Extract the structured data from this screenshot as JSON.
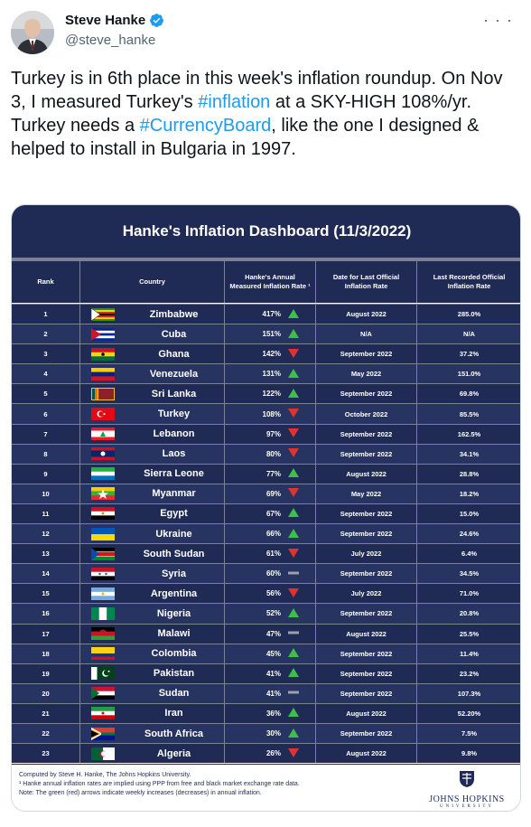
{
  "tweet": {
    "author_name": "Steve Hanke",
    "handle": "@steve_hanke",
    "more_icon": "more-horizontal-icon",
    "text_parts": [
      "Turkey is in 6th place in this week's inflation roundup. On Nov 3, I measured Turkey's ",
      "#inflation",
      " at a SKY-HIGH 108%/yr. Turkey needs a ",
      "#CurrencyBoard",
      ", like the one I designed & helped to install in Bulgaria in 1997."
    ]
  },
  "dashboard": {
    "title": "Hanke's Inflation Dashboard (11/3/2022)",
    "headers": {
      "rank": "Rank",
      "country": "Country",
      "rate": "Hanke's Annual Measured Inflation Rate ¹",
      "date": "Date for Last Official Inflation Rate",
      "last": "Last Recorded Official Inflation Rate"
    },
    "colors": {
      "up": "#3cc04a",
      "down": "#e0332f",
      "flat": "#9aa0ab",
      "navy": "#1f2b54"
    },
    "rows": [
      {
        "rank": "1",
        "country": "Zimbabwe",
        "rate": "417%",
        "trend": "up",
        "date": "August 2022",
        "last": "285.0%",
        "flag": "zimbabwe"
      },
      {
        "rank": "2",
        "country": "Cuba",
        "rate": "151%",
        "trend": "up",
        "date": "N/A",
        "last": "N/A",
        "flag": "cuba"
      },
      {
        "rank": "3",
        "country": "Ghana",
        "rate": "142%",
        "trend": "down",
        "date": "September 2022",
        "last": "37.2%",
        "flag": "ghana"
      },
      {
        "rank": "4",
        "country": "Venezuela",
        "rate": "131%",
        "trend": "up",
        "date": "May 2022",
        "last": "151.0%",
        "flag": "venezuela"
      },
      {
        "rank": "5",
        "country": "Sri Lanka",
        "rate": "122%",
        "trend": "up",
        "date": "September 2022",
        "last": "69.8%",
        "flag": "srilanka"
      },
      {
        "rank": "6",
        "country": "Turkey",
        "rate": "108%",
        "trend": "down",
        "date": "October 2022",
        "last": "85.5%",
        "flag": "turkey"
      },
      {
        "rank": "7",
        "country": "Lebanon",
        "rate": "97%",
        "trend": "down",
        "date": "September 2022",
        "last": "162.5%",
        "flag": "lebanon"
      },
      {
        "rank": "8",
        "country": "Laos",
        "rate": "80%",
        "trend": "down",
        "date": "September 2022",
        "last": "34.1%",
        "flag": "laos"
      },
      {
        "rank": "9",
        "country": "Sierra Leone",
        "rate": "77%",
        "trend": "up",
        "date": "August 2022",
        "last": "28.8%",
        "flag": "sierraleone"
      },
      {
        "rank": "10",
        "country": "Myanmar",
        "rate": "69%",
        "trend": "down",
        "date": "May 2022",
        "last": "18.2%",
        "flag": "myanmar"
      },
      {
        "rank": "11",
        "country": "Egypt",
        "rate": "67%",
        "trend": "up",
        "date": "September 2022",
        "last": "15.0%",
        "flag": "egypt"
      },
      {
        "rank": "12",
        "country": "Ukraine",
        "rate": "66%",
        "trend": "up",
        "date": "September 2022",
        "last": "24.6%",
        "flag": "ukraine"
      },
      {
        "rank": "13",
        "country": "South Sudan",
        "rate": "61%",
        "trend": "down",
        "date": "July 2022",
        "last": "6.4%",
        "flag": "southsudan"
      },
      {
        "rank": "14",
        "country": "Syria",
        "rate": "60%",
        "trend": "flat",
        "date": "September 2022",
        "last": "34.5%",
        "flag": "syria"
      },
      {
        "rank": "15",
        "country": "Argentina",
        "rate": "56%",
        "trend": "down",
        "date": "July 2022",
        "last": "71.0%",
        "flag": "argentina"
      },
      {
        "rank": "16",
        "country": "Nigeria",
        "rate": "52%",
        "trend": "up",
        "date": "September 2022",
        "last": "20.8%",
        "flag": "nigeria"
      },
      {
        "rank": "17",
        "country": "Malawi",
        "rate": "47%",
        "trend": "flat",
        "date": "August 2022",
        "last": "25.5%",
        "flag": "malawi"
      },
      {
        "rank": "18",
        "country": "Colombia",
        "rate": "45%",
        "trend": "up",
        "date": "September 2022",
        "last": "11.4%",
        "flag": "colombia"
      },
      {
        "rank": "19",
        "country": "Pakistan",
        "rate": "41%",
        "trend": "up",
        "date": "September 2022",
        "last": "23.2%",
        "flag": "pakistan"
      },
      {
        "rank": "20",
        "country": "Sudan",
        "rate": "41%",
        "trend": "flat",
        "date": "September 2022",
        "last": "107.3%",
        "flag": "sudan"
      },
      {
        "rank": "21",
        "country": "Iran",
        "rate": "36%",
        "trend": "up",
        "date": "August 2022",
        "last": "52.20%",
        "flag": "iran"
      },
      {
        "rank": "22",
        "country": "South Africa",
        "rate": "30%",
        "trend": "up",
        "date": "September 2022",
        "last": "7.5%",
        "flag": "southafrica"
      },
      {
        "rank": "23",
        "country": "Algeria",
        "rate": "26%",
        "trend": "down",
        "date": "August 2022",
        "last": "9.8%",
        "flag": "algeria"
      }
    ],
    "footnotes": [
      "Computed by Steve H. Hanke, The Johns Hopkins University.",
      "¹ Hanke annual inflation rates are implied using PPP from free and black market exchange rate data.",
      "Note: The green (red) arrows indicate weekly increases (decreases) in annual inflation."
    ],
    "logo": {
      "name": "JOHNS HOPKINS",
      "sub": "UNIVERSITY"
    }
  }
}
